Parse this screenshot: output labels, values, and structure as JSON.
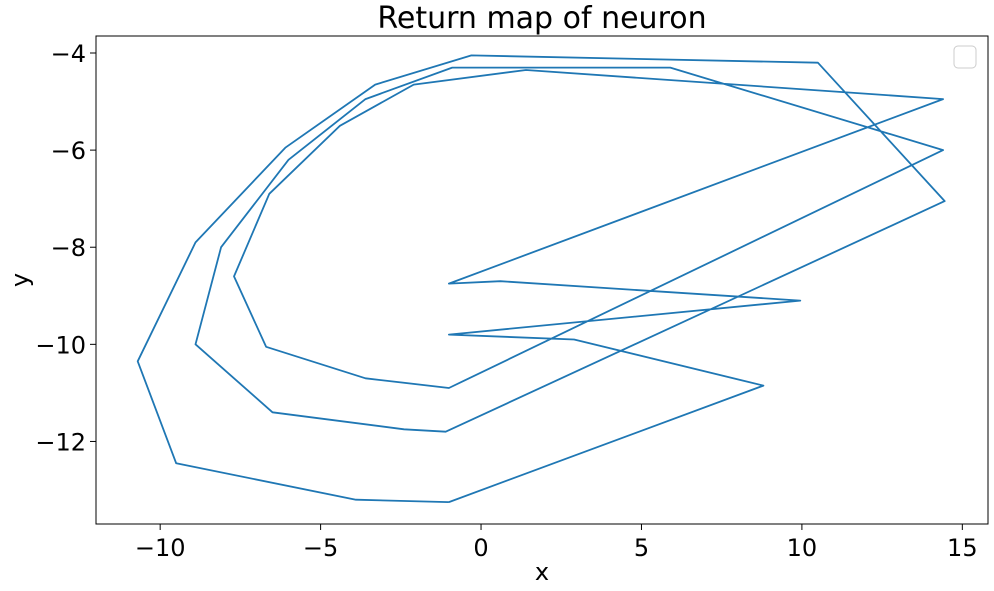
{
  "chart_data": {
    "type": "line",
    "title": "Return map of neuron",
    "xlabel": "x",
    "ylabel": "y",
    "xlim": [
      -12,
      15.8
    ],
    "ylim": [
      -13.7,
      -3.65
    ],
    "xticks": [
      -10,
      -5,
      0,
      5,
      10,
      15
    ],
    "yticks": [
      -4,
      -6,
      -8,
      -10,
      -12
    ],
    "xtick_labels": [
      "−10",
      "−5",
      "0",
      "5",
      "10",
      "15"
    ],
    "ytick_labels": [
      "−4",
      "−6",
      "−8",
      "−10",
      "−12"
    ],
    "grid": false,
    "legend": {
      "placement": "top-right",
      "entries": []
    },
    "series": [
      {
        "color": "#1f77b4",
        "points": [
          [
            -1.0,
            -13.25
          ],
          [
            -3.9,
            -13.2
          ],
          [
            -9.5,
            -12.45
          ],
          [
            -10.7,
            -10.35
          ],
          [
            -8.9,
            -7.9
          ],
          [
            -6.1,
            -5.95
          ],
          [
            -3.3,
            -4.65
          ],
          [
            -0.3,
            -4.05
          ],
          [
            10.5,
            -4.2
          ],
          [
            14.45,
            -7.05
          ],
          [
            -1.1,
            -11.8
          ],
          [
            -2.4,
            -11.75
          ],
          [
            -6.5,
            -11.4
          ],
          [
            -8.9,
            -10.0
          ],
          [
            -8.1,
            -8.0
          ],
          [
            -6.0,
            -6.2
          ],
          [
            -3.6,
            -4.95
          ],
          [
            -0.9,
            -4.3
          ],
          [
            5.9,
            -4.3
          ],
          [
            14.4,
            -6.0
          ],
          [
            -1.0,
            -10.9
          ],
          [
            -3.6,
            -10.7
          ],
          [
            -6.7,
            -10.05
          ],
          [
            -7.7,
            -8.6
          ],
          [
            -6.6,
            -6.9
          ],
          [
            -4.4,
            -5.5
          ],
          [
            -2.1,
            -4.65
          ],
          [
            1.4,
            -4.35
          ],
          [
            14.4,
            -4.95
          ],
          [
            -1.0,
            -8.75
          ],
          [
            0.6,
            -8.7
          ],
          [
            9.95,
            -9.1
          ],
          [
            -1.0,
            -9.8
          ],
          [
            2.9,
            -9.9
          ],
          [
            8.8,
            -10.85
          ],
          [
            -1.0,
            -13.25
          ]
        ]
      }
    ]
  }
}
